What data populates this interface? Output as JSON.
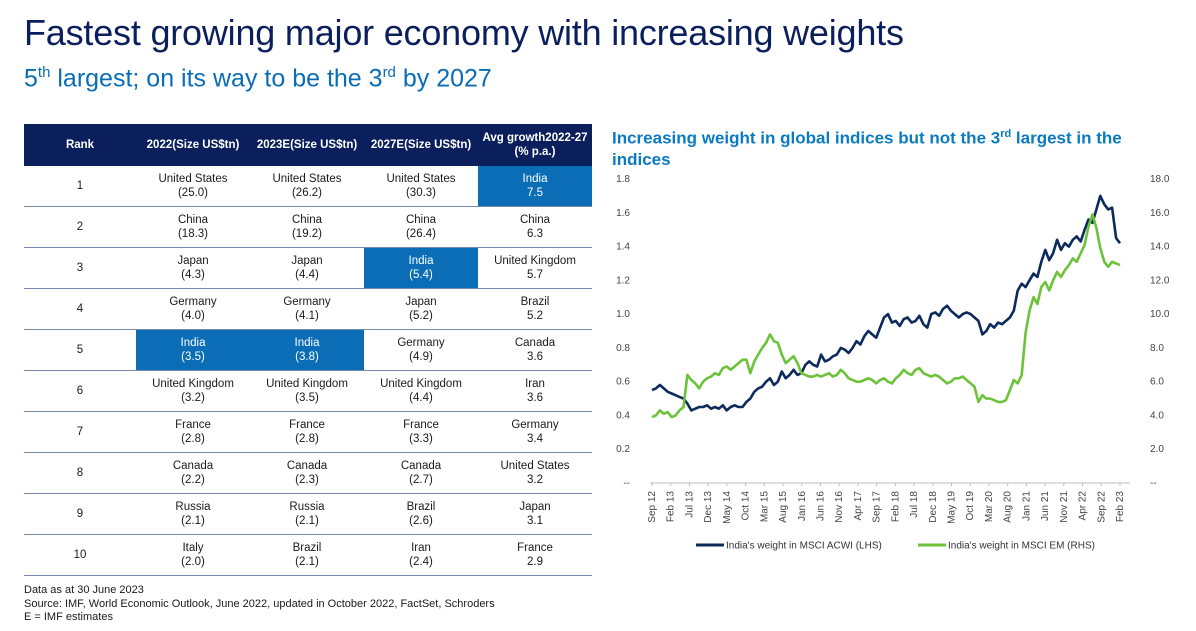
{
  "header": {
    "title": "Fastest growing major economy with increasing weights",
    "subtitle_part1": "5",
    "subtitle_sup1": "th",
    "subtitle_part2": " largest; on its way to be the 3",
    "subtitle_sup2": "rd",
    "subtitle_part3": " by 2027"
  },
  "table": {
    "headers": [
      {
        "l1": "Rank",
        "l2": ""
      },
      {
        "l1": "2022",
        "l2": "(Size US$tn)"
      },
      {
        "l1": "2023E",
        "l2": "(Size US$tn)"
      },
      {
        "l1": "2027E",
        "l2": "(Size US$tn)"
      },
      {
        "l1": "Avg growth",
        "l2": "2022-27 (% p.a.)"
      }
    ],
    "rows": [
      {
        "rank": "1",
        "c2022": {
          "name": "United States",
          "val": "(25.0)",
          "hl": false
        },
        "c2023": {
          "name": "United States",
          "val": "(26.2)",
          "hl": false
        },
        "c2027": {
          "name": "United States",
          "val": "(30.3)",
          "hl": false
        },
        "growth": {
          "name": "India",
          "val": "7.5",
          "hl": true
        }
      },
      {
        "rank": "2",
        "c2022": {
          "name": "China",
          "val": "(18.3)",
          "hl": false
        },
        "c2023": {
          "name": "China",
          "val": "(19.2)",
          "hl": false
        },
        "c2027": {
          "name": "China",
          "val": "(26.4)",
          "hl": false
        },
        "growth": {
          "name": "China",
          "val": "6.3",
          "hl": false
        }
      },
      {
        "rank": "3",
        "c2022": {
          "name": "Japan",
          "val": "(4.3)",
          "hl": false
        },
        "c2023": {
          "name": "Japan",
          "val": "(4.4)",
          "hl": false
        },
        "c2027": {
          "name": "India",
          "val": "(5.4)",
          "hl": true
        },
        "growth": {
          "name": "United Kingdom",
          "val": "5.7",
          "hl": false
        }
      },
      {
        "rank": "4",
        "c2022": {
          "name": "Germany",
          "val": "(4.0)",
          "hl": false
        },
        "c2023": {
          "name": "Germany",
          "val": "(4.1)",
          "hl": false
        },
        "c2027": {
          "name": "Japan",
          "val": "(5.2)",
          "hl": false
        },
        "growth": {
          "name": "Brazil",
          "val": "5.2",
          "hl": false
        }
      },
      {
        "rank": "5",
        "c2022": {
          "name": "India",
          "val": "(3.5)",
          "hl": true
        },
        "c2023": {
          "name": "India",
          "val": "(3.8)",
          "hl": true
        },
        "c2027": {
          "name": "Germany",
          "val": "(4.9)",
          "hl": false
        },
        "growth": {
          "name": "Canada",
          "val": "3.6",
          "hl": false
        }
      },
      {
        "rank": "6",
        "c2022": {
          "name": "United Kingdom",
          "val": "(3.2)",
          "hl": false
        },
        "c2023": {
          "name": "United Kingdom",
          "val": "(3.5)",
          "hl": false
        },
        "c2027": {
          "name": "United Kingdom",
          "val": "(4.4)",
          "hl": false
        },
        "growth": {
          "name": "Iran",
          "val": "3.6",
          "hl": false
        }
      },
      {
        "rank": "7",
        "c2022": {
          "name": "France",
          "val": "(2.8)",
          "hl": false
        },
        "c2023": {
          "name": "France",
          "val": "(2.8)",
          "hl": false
        },
        "c2027": {
          "name": "France",
          "val": "(3.3)",
          "hl": false
        },
        "growth": {
          "name": "Germany",
          "val": "3.4",
          "hl": false
        }
      },
      {
        "rank": "8",
        "c2022": {
          "name": "Canada",
          "val": "(2.2)",
          "hl": false
        },
        "c2023": {
          "name": "Canada",
          "val": "(2.3)",
          "hl": false
        },
        "c2027": {
          "name": "Canada",
          "val": "(2.7)",
          "hl": false
        },
        "growth": {
          "name": "United States",
          "val": "3.2",
          "hl": false
        }
      },
      {
        "rank": "9",
        "c2022": {
          "name": "Russia",
          "val": "(2.1)",
          "hl": false
        },
        "c2023": {
          "name": "Russia",
          "val": "(2.1)",
          "hl": false
        },
        "c2027": {
          "name": "Brazil",
          "val": "(2.6)",
          "hl": false
        },
        "growth": {
          "name": "Japan",
          "val": "3.1",
          "hl": false
        }
      },
      {
        "rank": "10",
        "c2022": {
          "name": "Italy",
          "val": "(2.0)",
          "hl": false
        },
        "c2023": {
          "name": "Brazil",
          "val": "(2.1)",
          "hl": false
        },
        "c2027": {
          "name": "Iran",
          "val": "(2.4)",
          "hl": false
        },
        "growth": {
          "name": "France",
          "val": "2.9",
          "hl": false
        }
      }
    ]
  },
  "footnotes": {
    "line1": "Data as at 30 June 2023",
    "line2": "Source: IMF, World Economic Outlook, June 2022, updated in October 2022, FactSet, Schroders",
    "line3": "E = IMF estimates"
  },
  "chart_title": {
    "part1": "Increasing weight in global indices but not the 3",
    "sup": "rd",
    "part2": " largest in the indices"
  },
  "colors": {
    "navy": "#0b1f5c",
    "blue": "#0a6db5",
    "acwi_line": "#0d2a5c",
    "em_line": "#6cc33a"
  },
  "chart_data": {
    "type": "line",
    "x_tick_labels": [
      "Sep 12",
      "Feb 13",
      "Jul 13",
      "Dec 13",
      "May 14",
      "Oct 14",
      "Mar 15",
      "Aug 15",
      "Jan 16",
      "Jun 16",
      "Nov 16",
      "Apr 17",
      "Sep 17",
      "Feb 18",
      "Jul 18",
      "Dec 18",
      "May 19",
      "Oct 19",
      "Mar 20",
      "Aug 20",
      "Jan 21",
      "Jun 21",
      "Nov 21",
      "Apr 22",
      "Sep 22",
      "Feb 23"
    ],
    "y_left": {
      "ticks": [
        "--",
        "0.2",
        "0.4",
        "0.6",
        "0.8",
        "1.0",
        "1.2",
        "1.4",
        "1.6",
        "1.8"
      ],
      "range": [
        0,
        1.8
      ]
    },
    "y_right": {
      "ticks": [
        "--",
        "2.0",
        "4.0",
        "6.0",
        "8.0",
        "10.0",
        "12.0",
        "14.0",
        "16.0",
        "18.0"
      ],
      "range": [
        0,
        18
      ]
    },
    "series": [
      {
        "name": "India's weight in MSCI ACWI (LHS)",
        "axis": "left",
        "x_start": "Sep 12",
        "values": [
          0.55,
          0.56,
          0.58,
          0.56,
          0.54,
          0.53,
          0.52,
          0.51,
          0.5,
          0.47,
          0.43,
          0.44,
          0.45,
          0.45,
          0.46,
          0.44,
          0.45,
          0.44,
          0.46,
          0.43,
          0.45,
          0.46,
          0.45,
          0.45,
          0.48,
          0.5,
          0.54,
          0.56,
          0.57,
          0.6,
          0.62,
          0.58,
          0.6,
          0.66,
          0.62,
          0.64,
          0.67,
          0.64,
          0.65,
          0.7,
          0.72,
          0.7,
          0.69,
          0.76,
          0.72,
          0.73,
          0.75,
          0.76,
          0.8,
          0.79,
          0.77,
          0.8,
          0.84,
          0.82,
          0.87,
          0.9,
          0.88,
          0.86,
          0.92,
          0.98,
          1.0,
          0.95,
          0.96,
          0.93,
          0.97,
          0.98,
          0.95,
          0.96,
          0.99,
          0.94,
          0.92,
          1.0,
          1.01,
          0.99,
          1.03,
          1.05,
          1.02,
          1.0,
          0.98,
          1.0,
          1.01,
          1.0,
          0.98,
          0.96,
          0.88,
          0.9,
          0.94,
          0.92,
          0.95,
          0.94,
          0.96,
          0.98,
          1.02,
          1.14,
          1.18,
          1.16,
          1.2,
          1.24,
          1.22,
          1.31,
          1.38,
          1.32,
          1.36,
          1.44,
          1.38,
          1.42,
          1.4,
          1.44,
          1.46,
          1.43,
          1.5,
          1.56,
          1.54,
          1.62,
          1.7,
          1.65,
          1.62,
          1.63,
          1.45,
          1.42
        ],
        "end_label": "Feb 23"
      },
      {
        "name": "India's weight in MSCI EM (RHS)",
        "axis": "right",
        "x_start": "Sep 12",
        "values": [
          3.9,
          4.0,
          4.3,
          4.1,
          4.2,
          3.9,
          4.0,
          4.3,
          4.5,
          6.4,
          6.1,
          5.9,
          5.6,
          6.0,
          6.2,
          6.3,
          6.5,
          6.4,
          6.8,
          6.9,
          6.7,
          6.9,
          7.1,
          7.3,
          7.3,
          6.5,
          7.2,
          7.6,
          8.0,
          8.3,
          8.8,
          8.4,
          8.3,
          7.6,
          7.1,
          7.3,
          7.5,
          7.1,
          6.5,
          6.4,
          6.3,
          6.3,
          6.4,
          6.3,
          6.4,
          6.5,
          6.3,
          6.4,
          6.7,
          6.5,
          6.2,
          6.1,
          6.0,
          6.0,
          6.1,
          6.2,
          6.1,
          5.9,
          6.1,
          6.2,
          6.0,
          5.9,
          6.2,
          6.4,
          6.7,
          6.5,
          6.4,
          6.7,
          6.8,
          6.5,
          6.4,
          6.3,
          6.4,
          6.3,
          6.1,
          5.9,
          6.0,
          6.2,
          6.2,
          6.3,
          6.1,
          5.9,
          5.7,
          4.8,
          5.2,
          5.0,
          5.0,
          4.9,
          4.8,
          4.8,
          4.9,
          5.5,
          6.1,
          5.9,
          6.4,
          8.9,
          10.2,
          11.0,
          10.6,
          11.6,
          11.9,
          11.4,
          12.0,
          12.5,
          12.2,
          12.6,
          12.9,
          13.3,
          13.1,
          13.6,
          14.1,
          15.2,
          15.9,
          15.1,
          13.9,
          13.1,
          12.8,
          13.1,
          13.0,
          12.9
        ],
        "end_label": "Feb 23"
      }
    ]
  }
}
